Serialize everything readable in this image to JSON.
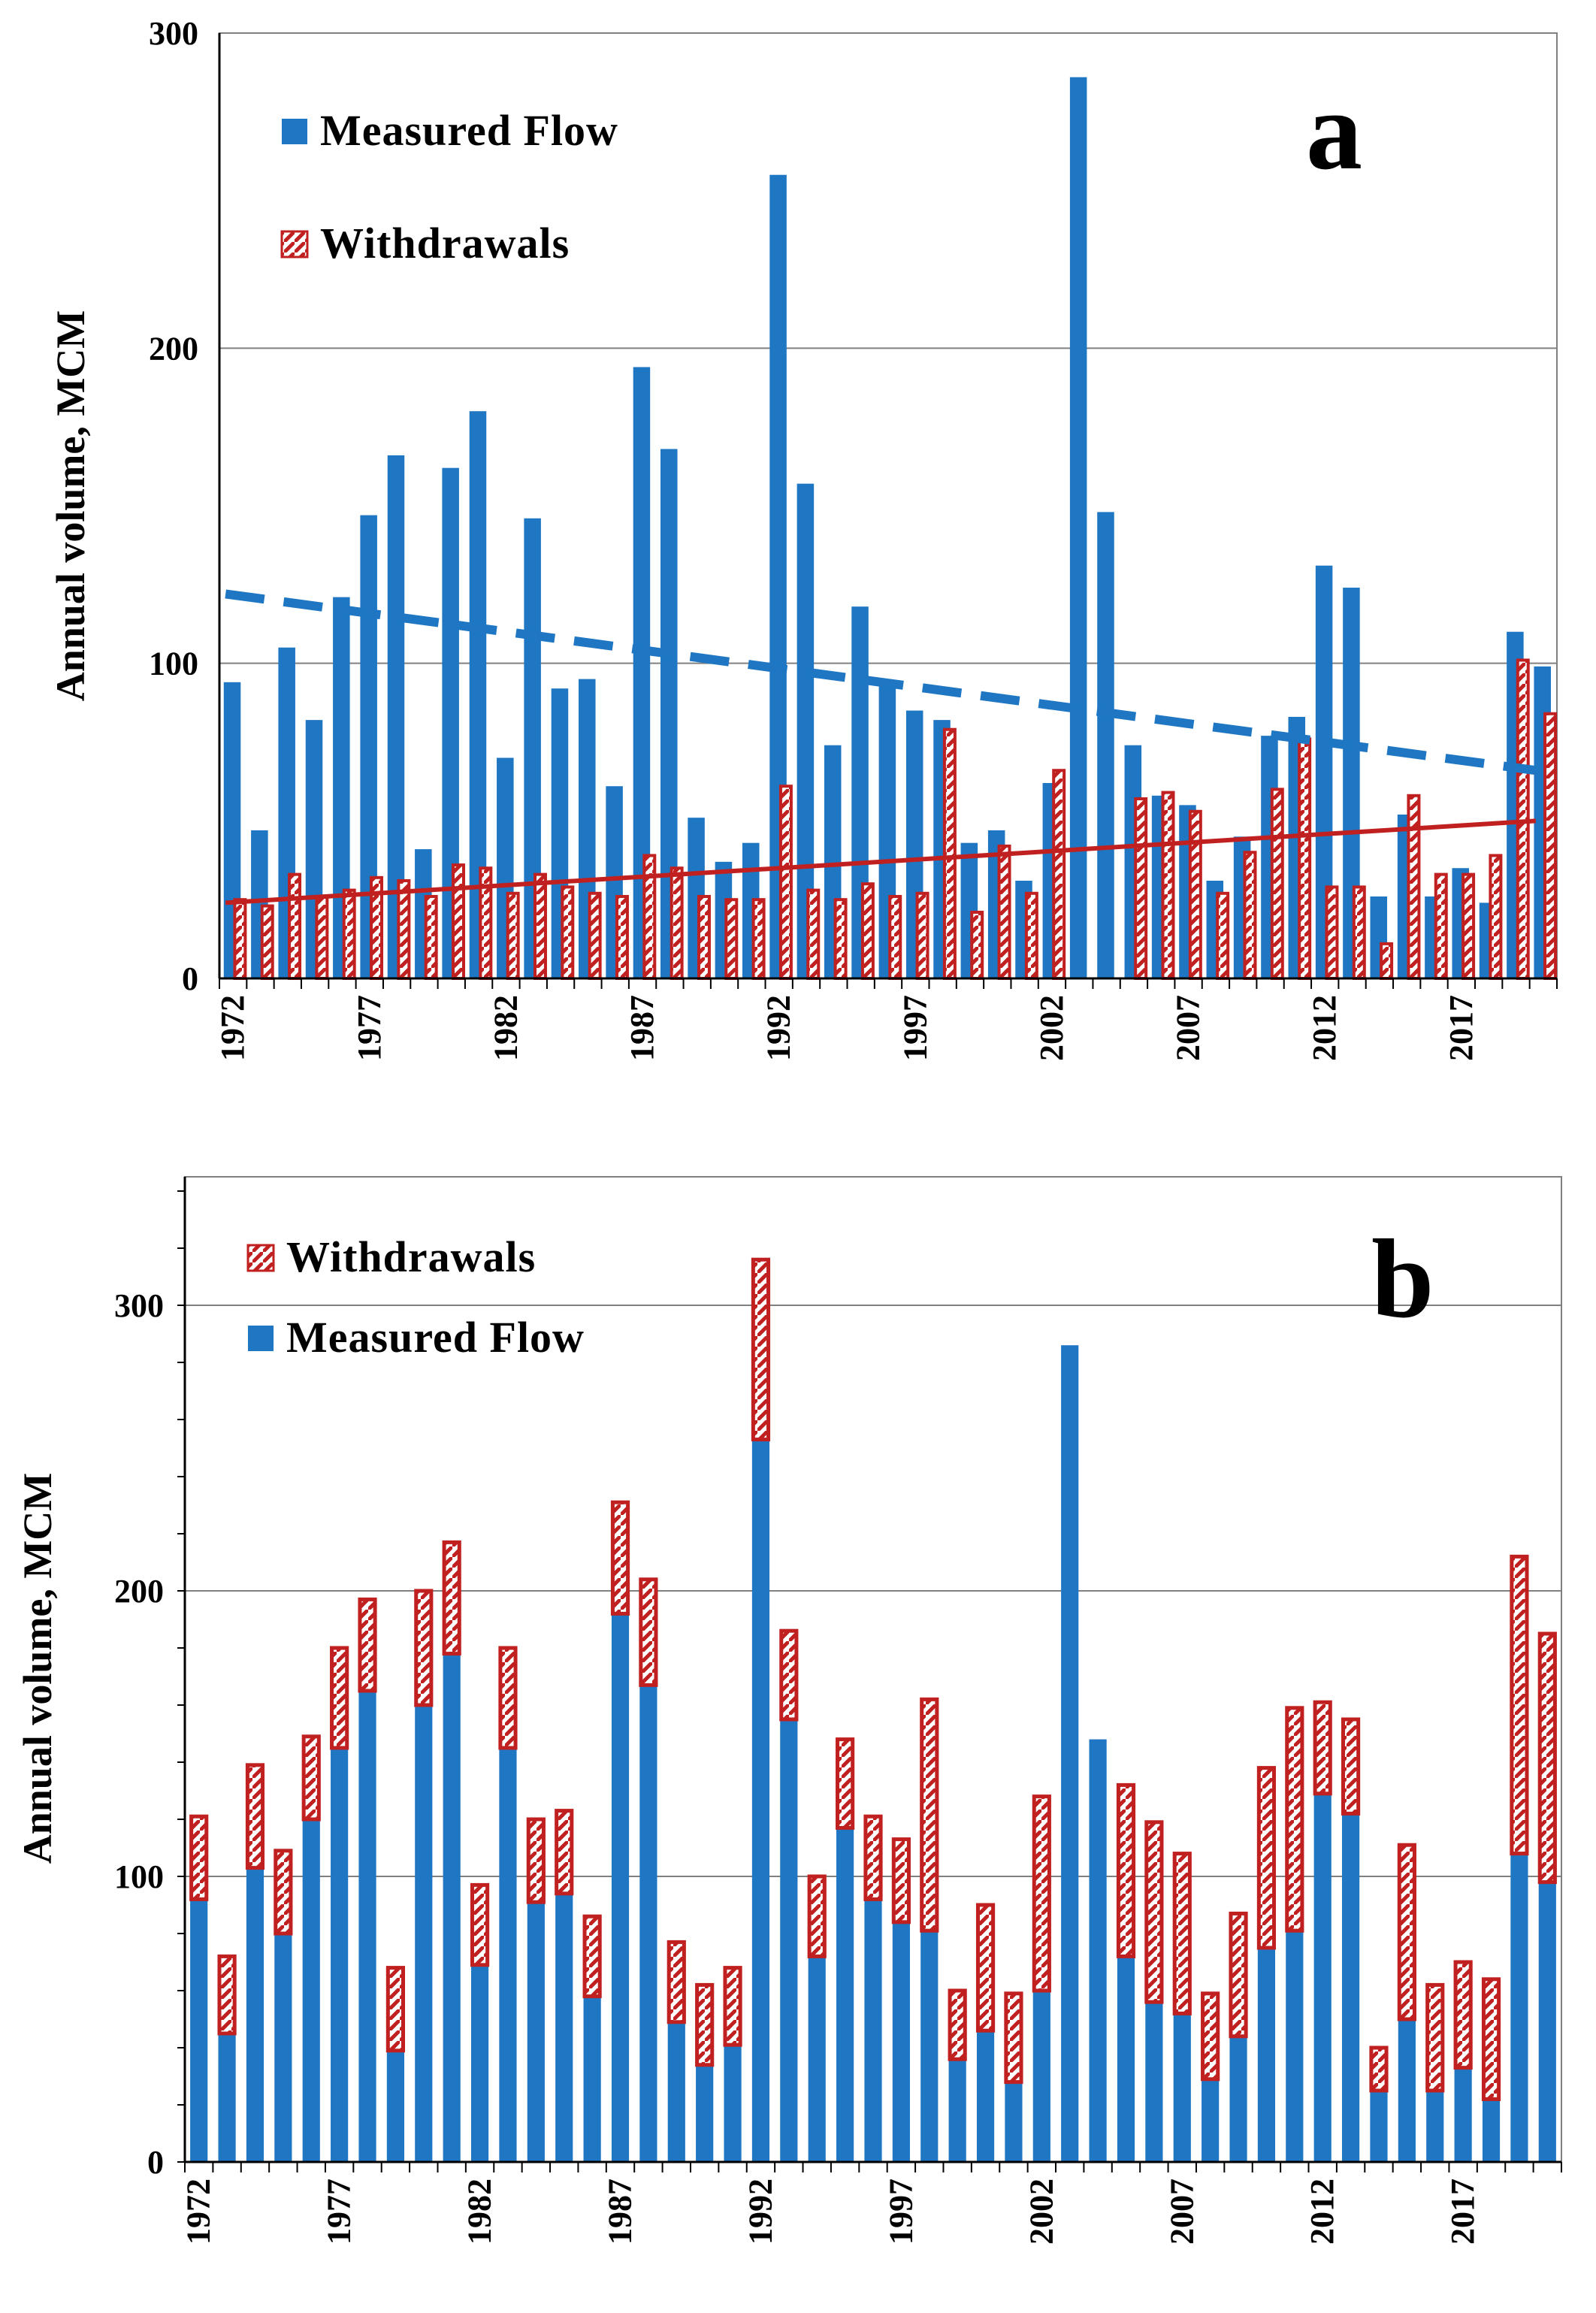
{
  "colors": {
    "flow": "#1f77c4",
    "withdrawal": "#c0201f",
    "grid": "#808080",
    "axis": "#000000"
  },
  "chart_data": [
    {
      "panel": "a",
      "type": "bar",
      "panel_label": "a",
      "ylabel": "Annual  volume, MCM",
      "ylim": [
        0,
        300
      ],
      "yticks": [
        "0",
        "100",
        "200",
        "300"
      ],
      "xtick_labels": [
        "1972",
        "1977",
        "1982",
        "1987",
        "1992",
        "1997",
        "2002",
        "2007",
        "2012",
        "2017"
      ],
      "x": [
        1972,
        1973,
        1974,
        1975,
        1976,
        1977,
        1978,
        1979,
        1980,
        1981,
        1982,
        1983,
        1984,
        1985,
        1986,
        1987,
        1988,
        1989,
        1990,
        1991,
        1992,
        1993,
        1994,
        1995,
        1996,
        1997,
        1998,
        1999,
        2000,
        2001,
        2002,
        2003,
        2004,
        2005,
        2006,
        2007,
        2008,
        2009,
        2010,
        2011,
        2012,
        2013,
        2014,
        2015,
        2016,
        2017,
        2018,
        2019,
        2020
      ],
      "series": [
        {
          "name": "Measured Flow",
          "style": "solid",
          "values": [
            94,
            47,
            105,
            82,
            121,
            147,
            166,
            41,
            162,
            180,
            70,
            146,
            92,
            95,
            61,
            194,
            168,
            51,
            37,
            43,
            255,
            157,
            74,
            118,
            93,
            85,
            82,
            43,
            47,
            31,
            62,
            286,
            148,
            74,
            58,
            55,
            31,
            45,
            77,
            83,
            131,
            124,
            26,
            52,
            26,
            35,
            24,
            110,
            99
          ]
        },
        {
          "name": "Withdrawals",
          "style": "hatched",
          "values": [
            25,
            23,
            33,
            26,
            28,
            32,
            31,
            26,
            36,
            35,
            27,
            33,
            29,
            27,
            26,
            39,
            35,
            26,
            25,
            25,
            61,
            28,
            25,
            30,
            26,
            27,
            79,
            21,
            42,
            27,
            66,
            0,
            0,
            57,
            59,
            53,
            27,
            40,
            60,
            76,
            29,
            29,
            11,
            58,
            33,
            33,
            39,
            101,
            84
          ]
        }
      ],
      "trendlines": [
        {
          "series": "Measured Flow",
          "style": "dashed",
          "start": [
            1972,
            122
          ],
          "end": [
            2020,
            66
          ]
        },
        {
          "series": "Withdrawals",
          "style": "solid",
          "start": [
            1972,
            24
          ],
          "end": [
            2020,
            50
          ]
        }
      ],
      "legend": [
        "Measured Flow",
        "Withdrawals"
      ]
    },
    {
      "panel": "b",
      "type": "stacked bar",
      "panel_label": "b",
      "ylabel": "Annual  volume, MCM",
      "ylim": [
        0,
        345
      ],
      "yticks": [
        "0",
        "100",
        "200",
        "300"
      ],
      "xtick_labels": [
        "1972",
        "1977",
        "1982",
        "1987",
        "1992",
        "1997",
        "2002",
        "2007",
        "2012",
        "2017"
      ],
      "x": [
        1972,
        1973,
        1974,
        1975,
        1976,
        1977,
        1978,
        1979,
        1980,
        1981,
        1982,
        1983,
        1984,
        1985,
        1986,
        1987,
        1988,
        1989,
        1990,
        1991,
        1992,
        1993,
        1994,
        1995,
        1996,
        1997,
        1998,
        1999,
        2000,
        2001,
        2002,
        2003,
        2004,
        2005,
        2006,
        2007,
        2008,
        2009,
        2010,
        2011,
        2012,
        2013,
        2014,
        2015,
        2016,
        2017,
        2018,
        2019,
        2020
      ],
      "series": [
        {
          "name": "Measured Flow",
          "style": "solid",
          "values": [
            92,
            45,
            103,
            80,
            120,
            145,
            165,
            39,
            160,
            178,
            69,
            145,
            91,
            94,
            58,
            192,
            167,
            49,
            34,
            41,
            253,
            155,
            72,
            117,
            92,
            84,
            81,
            36,
            46,
            28,
            60,
            286,
            148,
            72,
            56,
            52,
            29,
            44,
            75,
            81,
            129,
            122,
            25,
            50,
            25,
            33,
            22,
            108,
            98
          ]
        },
        {
          "name": "Withdrawals",
          "style": "hatched",
          "values": [
            29,
            27,
            36,
            29,
            29,
            35,
            32,
            29,
            40,
            39,
            28,
            35,
            29,
            29,
            28,
            39,
            37,
            28,
            28,
            27,
            63,
            31,
            28,
            31,
            29,
            29,
            81,
            24,
            44,
            31,
            68,
            0,
            0,
            60,
            63,
            56,
            30,
            43,
            63,
            78,
            32,
            33,
            15,
            61,
            37,
            37,
            42,
            104,
            87
          ]
        }
      ],
      "legend": [
        "Withdrawals",
        "Measured Flow"
      ]
    }
  ]
}
